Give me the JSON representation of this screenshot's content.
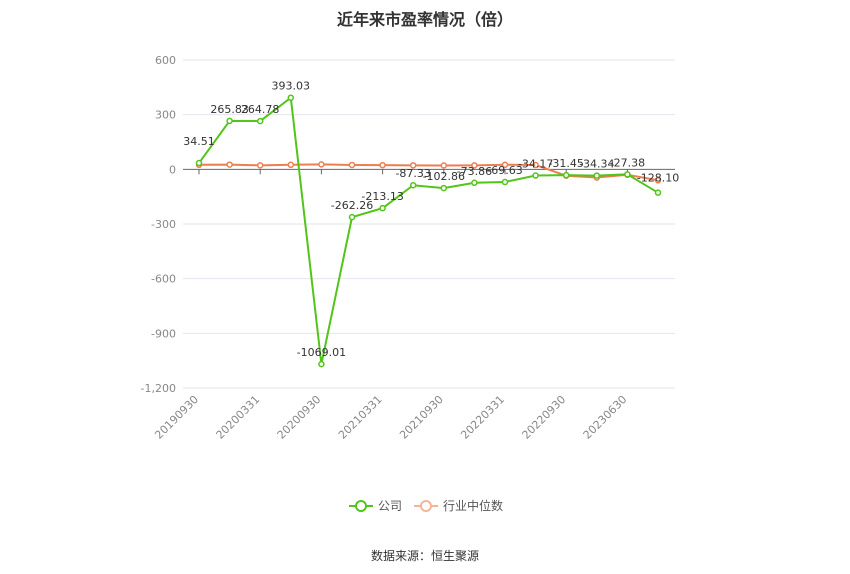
{
  "chart_data": {
    "type": "line",
    "title": "近年来市盈率情况（倍）",
    "ylim": [
      -1200,
      600
    ],
    "yticks": [
      600,
      300,
      0,
      -300,
      -600,
      -900,
      -1200
    ],
    "ytick_labels": [
      "600",
      "300",
      "0",
      "-300",
      "-600",
      "-900",
      "-1,200"
    ],
    "x_tick_labels": [
      "20190930",
      "20200331",
      "20200930",
      "20210331",
      "20210930",
      "20220331",
      "20220930",
      "20230630"
    ],
    "x_tick_index": [
      0,
      2,
      4,
      6,
      8,
      10,
      12,
      14
    ],
    "grid": true,
    "legend_position": "bottom",
    "series": [
      {
        "name": "公司",
        "color": "#52c41a",
        "values": [
          34.51,
          265.83,
          264.78,
          393.03,
          -1069.01,
          -262.26,
          -213.13,
          -87.33,
          -102.86,
          -73.86,
          -69.63,
          -34.17,
          -31.45,
          -34.34,
          -27.38,
          -128.1
        ],
        "labels": [
          "34.51",
          "265.83",
          "264.78",
          "393.03",
          "-1069.01",
          "-262.26",
          "-213.13",
          "-87.33",
          "-102.86",
          "-73.86",
          "-69.63",
          "-34.17",
          "-31.45",
          "-34.34",
          "-27.38",
          "-128.10"
        ]
      },
      {
        "name": "行业中位数",
        "color": "#ee7d4f",
        "values": [
          25,
          26,
          22,
          25,
          27,
          24,
          23,
          22,
          21,
          22,
          25,
          24,
          -35,
          -45,
          -30,
          -60
        ]
      }
    ]
  },
  "source_text": "数据来源：恒生聚源"
}
